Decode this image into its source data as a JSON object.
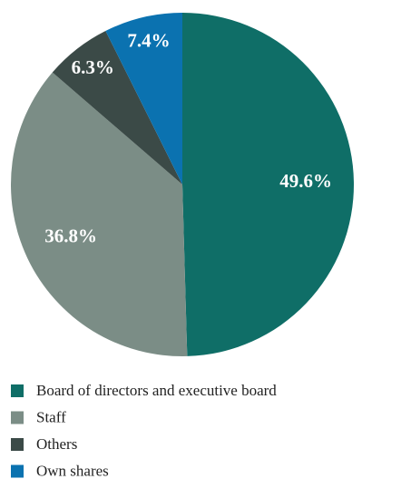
{
  "chart_data": {
    "type": "pie",
    "categories": [
      "Board of directors and executive board",
      "Staff",
      "Others",
      "Own shares"
    ],
    "values": [
      49.6,
      36.8,
      6.3,
      7.4
    ],
    "value_labels": [
      "49.6%",
      "36.8%",
      "6.3%",
      "7.4%"
    ],
    "colors": [
      "#0f6e67",
      "#7b8d86",
      "#3b4a47",
      "#0b72b0"
    ]
  }
}
